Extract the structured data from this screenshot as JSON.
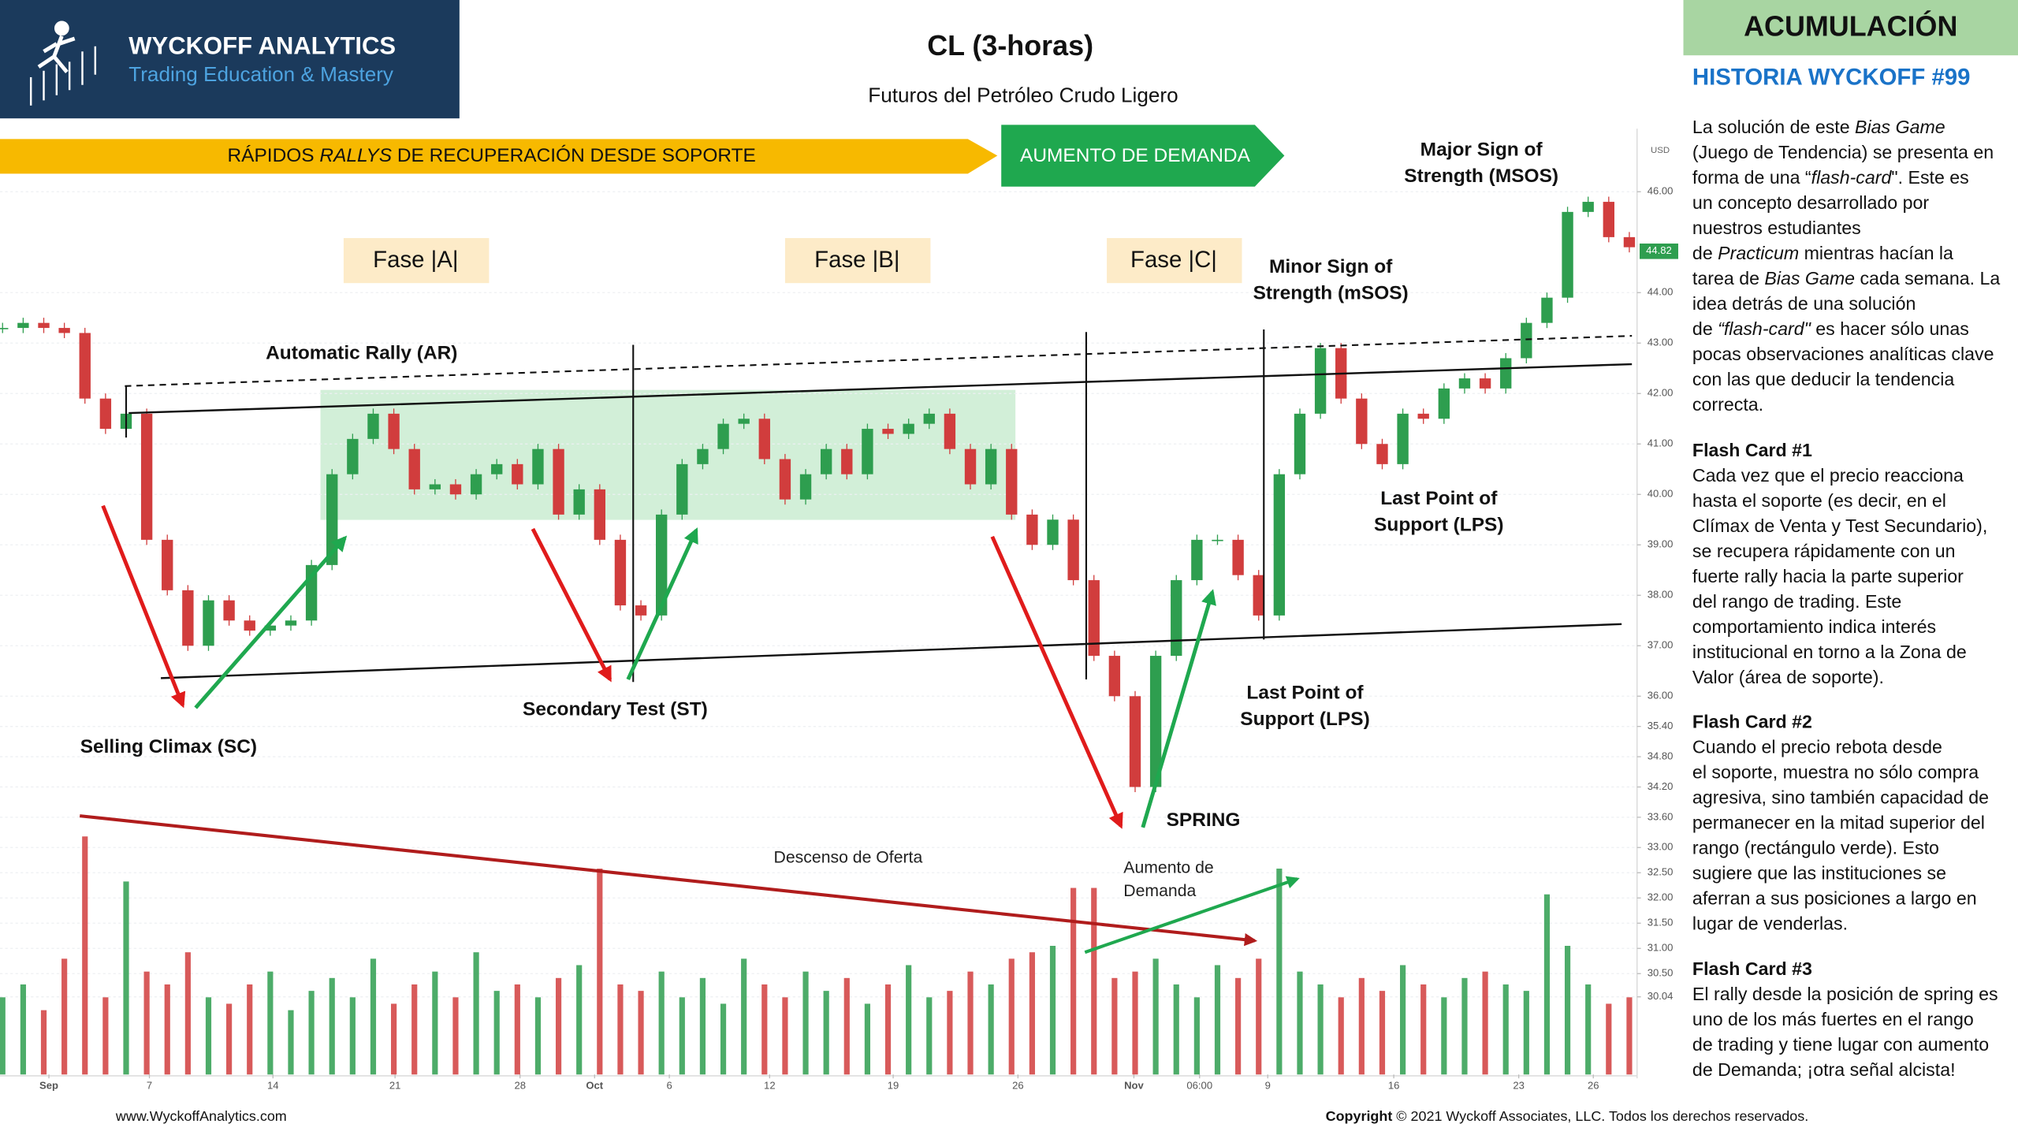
{
  "header": {
    "brand": "WYCKOFF ANALYTICS",
    "tagline": "Trading Education & Mastery"
  },
  "chart_data": {
    "type": "candlestick",
    "title": "CL (3-horas)",
    "subtitle": "Futuros del Petróleo Crudo Ligero",
    "currency": "USD",
    "last_price": 44.82,
    "up_color": "#2e9e4f",
    "down_color": "#d13d3d",
    "values": [
      43.3,
      43.4,
      43.3,
      43.2,
      41.9,
      41.3,
      41.6,
      39.1,
      38.1,
      37.0,
      37.9,
      37.5,
      37.3,
      37.4,
      37.5,
      38.6,
      40.4,
      41.1,
      41.6,
      40.9,
      40.1,
      40.2,
      40.0,
      40.4,
      40.6,
      40.2,
      40.9,
      39.6,
      40.1,
      39.1,
      37.8,
      37.6,
      39.6,
      40.6,
      40.9,
      41.4,
      41.5,
      40.7,
      39.9,
      40.4,
      40.9,
      40.4,
      41.3,
      41.2,
      41.4,
      41.6,
      40.9,
      40.2,
      40.9,
      39.6,
      39.0,
      39.5,
      38.3,
      36.8,
      36.0,
      34.2,
      36.8,
      38.3,
      39.1,
      39.1,
      38.4,
      37.6,
      40.4,
      41.6,
      42.9,
      41.9,
      41.0,
      40.6,
      41.6,
      41.5,
      42.1,
      42.3,
      42.1,
      42.7,
      43.4,
      43.9,
      45.6,
      45.8,
      45.1,
      44.9
    ],
    "volume": {
      "y2lim": [
        0,
        200
      ],
      "values": [
        60,
        70,
        50,
        90,
        185,
        60,
        150,
        80,
        70,
        95,
        60,
        55,
        70,
        80,
        50,
        65,
        75,
        60,
        90,
        55,
        70,
        80,
        60,
        95,
        65,
        70,
        60,
        75,
        85,
        160,
        70,
        65,
        80,
        60,
        75,
        55,
        90,
        70,
        60,
        80,
        65,
        75,
        55,
        70,
        85,
        60,
        65,
        80,
        70,
        90,
        95,
        100,
        145,
        145,
        75,
        80,
        90,
        70,
        60,
        85,
        75,
        90,
        160,
        80,
        70,
        60,
        75,
        65,
        85,
        70,
        60,
        75,
        80,
        70,
        65,
        140,
        100,
        70,
        55,
        60
      ]
    },
    "xlim": [
      -0.125,
      79.375
    ],
    "xticks": [
      {
        "value": 2.25,
        "label": "Sep"
      },
      {
        "value": 7.13,
        "label": "7"
      },
      {
        "value": 13.13,
        "label": "14"
      },
      {
        "value": 19.06,
        "label": "21"
      },
      {
        "value": 25.13,
        "label": "28"
      },
      {
        "value": 28.75,
        "label": "Oct"
      },
      {
        "value": 32.38,
        "label": "6"
      },
      {
        "value": 37.25,
        "label": "12"
      },
      {
        "value": 43.25,
        "label": "19"
      },
      {
        "value": 49.31,
        "label": "26"
      },
      {
        "value": 54.94,
        "label": "Nov"
      },
      {
        "value": 58.13,
        "label": "06:00"
      },
      {
        "value": 61.44,
        "label": "9"
      },
      {
        "value": 67.56,
        "label": "16"
      },
      {
        "value": 73.63,
        "label": "23"
      },
      {
        "value": 77.25,
        "label": "26"
      }
    ],
    "ylim": [
      28.5,
      47.25
    ],
    "yticks": [
      {
        "value": 46,
        "label": "46.00"
      },
      {
        "value": 44,
        "label": "44.00"
      },
      {
        "value": 43,
        "label": "43.00"
      },
      {
        "value": 42,
        "label": "42.00"
      },
      {
        "value": 41,
        "label": "41.00"
      },
      {
        "value": 40,
        "label": "40.00"
      },
      {
        "value": 39,
        "label": "39.00"
      },
      {
        "value": 38,
        "label": "38.00"
      },
      {
        "value": 37,
        "label": "37.00"
      },
      {
        "value": 36,
        "label": "36.00"
      },
      {
        "value": 35.4,
        "label": "35.40"
      },
      {
        "value": 34.8,
        "label": "34.80"
      },
      {
        "value": 34.2,
        "label": "34.20"
      },
      {
        "value": 33.6,
        "label": "33.60"
      },
      {
        "value": 33,
        "label": "33.00"
      },
      {
        "value": 32.5,
        "label": "32.50"
      },
      {
        "value": 32,
        "label": "32.00"
      },
      {
        "value": 31.5,
        "label": "31.50"
      },
      {
        "value": 31,
        "label": "31.00"
      },
      {
        "value": 30.5,
        "label": "30.50"
      },
      {
        "value": 30.04,
        "label": "30.04"
      }
    ],
    "grid": true,
    "banners": [
      [
        "RÁPIDOS ",
        "RALLYS",
        " DE RECUPERACIÓN DESDE SOPORTE"
      ],
      [
        "AUMENTO DE DEMANDA"
      ]
    ],
    "phases": [
      "Fase |A|",
      "Fase |B|",
      "Fase |C|"
    ],
    "annotations": [
      [
        "Automatic Rally (AR)"
      ],
      [
        "Selling Climax (SC)"
      ],
      [
        "Secondary Test (ST)"
      ],
      [
        "SPRING"
      ],
      [
        "Last Point of",
        "Support (LPS)"
      ],
      [
        "Last Point of",
        "Support (LPS)"
      ],
      [
        "Minor Sign of",
        "Strength (mSOS)"
      ],
      [
        "Major Sign of",
        "Strength (MSOS)"
      ],
      [
        "Descenso de Oferta"
      ],
      [
        "Aumento de",
        "Demanda"
      ]
    ]
  },
  "sidebar": {
    "tag": "ACUMULACIÓN",
    "heading": "HISTORIA WYCKOFF #99",
    "intro": [
      [
        "La solución de este ",
        "Bias Game"
      ],
      [
        "(Juego de Tendencia) se presenta en"
      ],
      [
        "forma de una “",
        "flash-card",
        "\". Este es"
      ],
      [
        "un concepto desarrollado por"
      ],
      [
        "nuestros estudiantes"
      ],
      [
        "de ",
        "Practicum",
        " mientras hacían la"
      ],
      [
        "tarea de ",
        "Bias Game",
        " cada semana. La"
      ],
      [
        "idea detrás de una solución"
      ],
      [
        "de ",
        "“flash-card\"",
        " es hacer sólo unas"
      ],
      [
        "pocas observaciones analíticas clave"
      ],
      [
        "con las que deducir la tendencia"
      ],
      [
        "correcta."
      ]
    ],
    "cards": [
      {
        "title": "Flash Card #1",
        "lines": [
          "Cada vez que el precio reacciona",
          "hasta el soporte (es decir, en el",
          "Clímax de Venta y Test Secundario),",
          "se recupera rápidamente con un",
          "fuerte rally hacia la parte superior",
          "del rango de trading. Este",
          "comportamiento indica interés",
          "institucional en torno a la Zona de",
          "Valor (área de soporte)."
        ]
      },
      {
        "title": "Flash Card #2",
        "lines": [
          "Cuando el precio rebota desde",
          "el soporte, muestra no sólo compra",
          "agresiva, sino también capacidad de",
          "permanecer en la mitad superior del",
          "rango (rectángulo verde). Esto",
          "sugiere que las instituciones se",
          "aferran a sus posiciones a largo en",
          "lugar de venderlas."
        ]
      },
      {
        "title": "Flash Card #3",
        "lines": [
          "El rally desde la posición de spring es",
          "uno de los más fuertes en el rango",
          "de trading y tiene lugar con aumento",
          "de Demanda; ¡otra señal alcista!"
        ]
      }
    ]
  },
  "footer": {
    "website": "www.WyckoffAnalytics.com",
    "copyright_label": "Copyright",
    "copyright_text": " © 2021 Wyckoff Associates, LLC. Todos los derechos reservados."
  }
}
